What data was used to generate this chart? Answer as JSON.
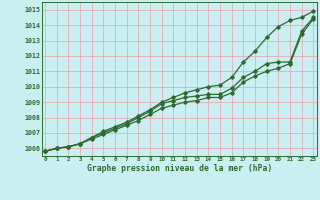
{
  "title": "Graphe pression niveau de la mer (hPa)",
  "background_color": "#cbeef3",
  "plot_bg_color": "#cbeef3",
  "grid_color": "#e8a0a8",
  "line_color": "#2d6b2d",
  "x_labels": [
    "0",
    "1",
    "2",
    "3",
    "4",
    "5",
    "6",
    "7",
    "8",
    "9",
    "10",
    "11",
    "12",
    "13",
    "14",
    "15",
    "16",
    "17",
    "18",
    "19",
    "20",
    "21",
    "22",
    "23"
  ],
  "ylim": [
    1005.5,
    1015.5
  ],
  "yticks": [
    1006,
    1007,
    1008,
    1009,
    1010,
    1011,
    1012,
    1013,
    1014,
    1015
  ],
  "line_top": [
    1005.8,
    1006.0,
    1006.1,
    1006.3,
    1006.7,
    1007.1,
    1007.4,
    1007.7,
    1008.1,
    1008.5,
    1009.0,
    1009.3,
    1009.6,
    1009.8,
    1010.0,
    1010.1,
    1010.6,
    1011.6,
    1012.3,
    1013.2,
    1013.9,
    1014.3,
    1014.5,
    1014.9
  ],
  "line_mid": [
    1005.8,
    1006.0,
    1006.1,
    1006.3,
    1006.7,
    1007.0,
    1007.3,
    1007.6,
    1008.0,
    1008.4,
    1008.9,
    1009.1,
    1009.3,
    1009.4,
    1009.5,
    1009.5,
    1009.9,
    1010.6,
    1011.0,
    1011.5,
    1011.6,
    1011.6,
    1013.6,
    1014.5
  ],
  "line_bot": [
    1005.8,
    1006.0,
    1006.1,
    1006.3,
    1006.6,
    1006.9,
    1007.2,
    1007.5,
    1007.8,
    1008.2,
    1008.6,
    1008.8,
    1009.0,
    1009.1,
    1009.3,
    1009.3,
    1009.6,
    1010.3,
    1010.7,
    1011.0,
    1011.2,
    1011.5,
    1013.4,
    1014.4
  ]
}
